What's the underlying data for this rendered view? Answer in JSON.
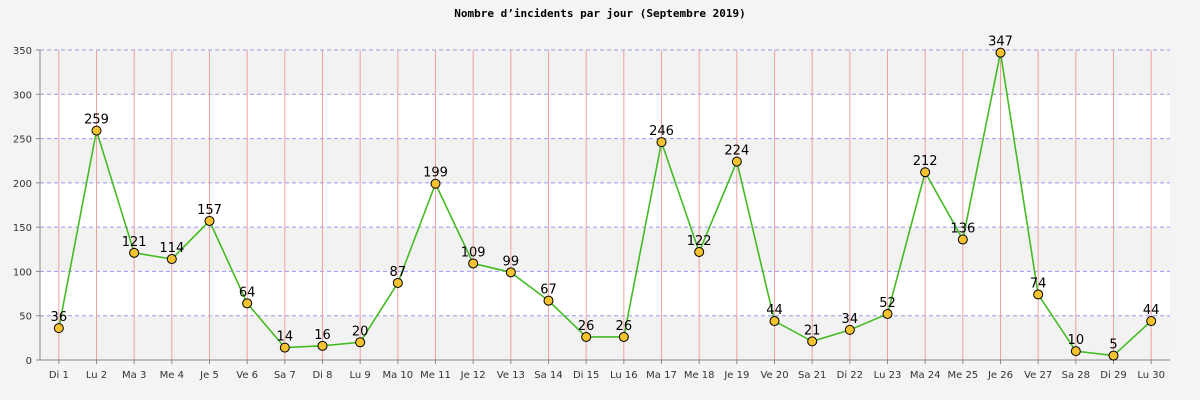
{
  "chart_data": {
    "type": "line",
    "title": "Nombre d’incidents par jour (Septembre 2019)",
    "xlabel": "",
    "ylabel": "",
    "categories": [
      "Di 1",
      "Lu 2",
      "Ma 3",
      "Me 4",
      "Je 5",
      "Ve 6",
      "Sa 7",
      "Di 8",
      "Lu 9",
      "Ma 10",
      "Me 11",
      "Je 12",
      "Ve 13",
      "Sa 14",
      "Di 15",
      "Lu 16",
      "Ma 17",
      "Me 18",
      "Je 19",
      "Ve 20",
      "Sa 21",
      "Di 22",
      "Lu 23",
      "Ma 24",
      "Me 25",
      "Je 26",
      "Ve 27",
      "Sa 28",
      "Di 29",
      "Lu 30"
    ],
    "values": [
      36,
      259,
      121,
      114,
      157,
      64,
      14,
      16,
      20,
      87,
      199,
      109,
      99,
      67,
      26,
      26,
      246,
      122,
      224,
      44,
      21,
      34,
      52,
      212,
      136,
      347,
      74,
      10,
      5,
      44
    ],
    "ylim": [
      0,
      350
    ],
    "yticks": [
      0,
      50,
      100,
      150,
      200,
      250,
      300,
      350
    ],
    "grid": true,
    "colors": {
      "line": "#44bb22",
      "marker_fill": "#f5c230",
      "marker_stroke": "#000000",
      "vgrid": "#f0a0a0",
      "hgrid": "#9999ee",
      "band_light": "#ffffff",
      "band_dark": "#f2f2f2"
    }
  }
}
